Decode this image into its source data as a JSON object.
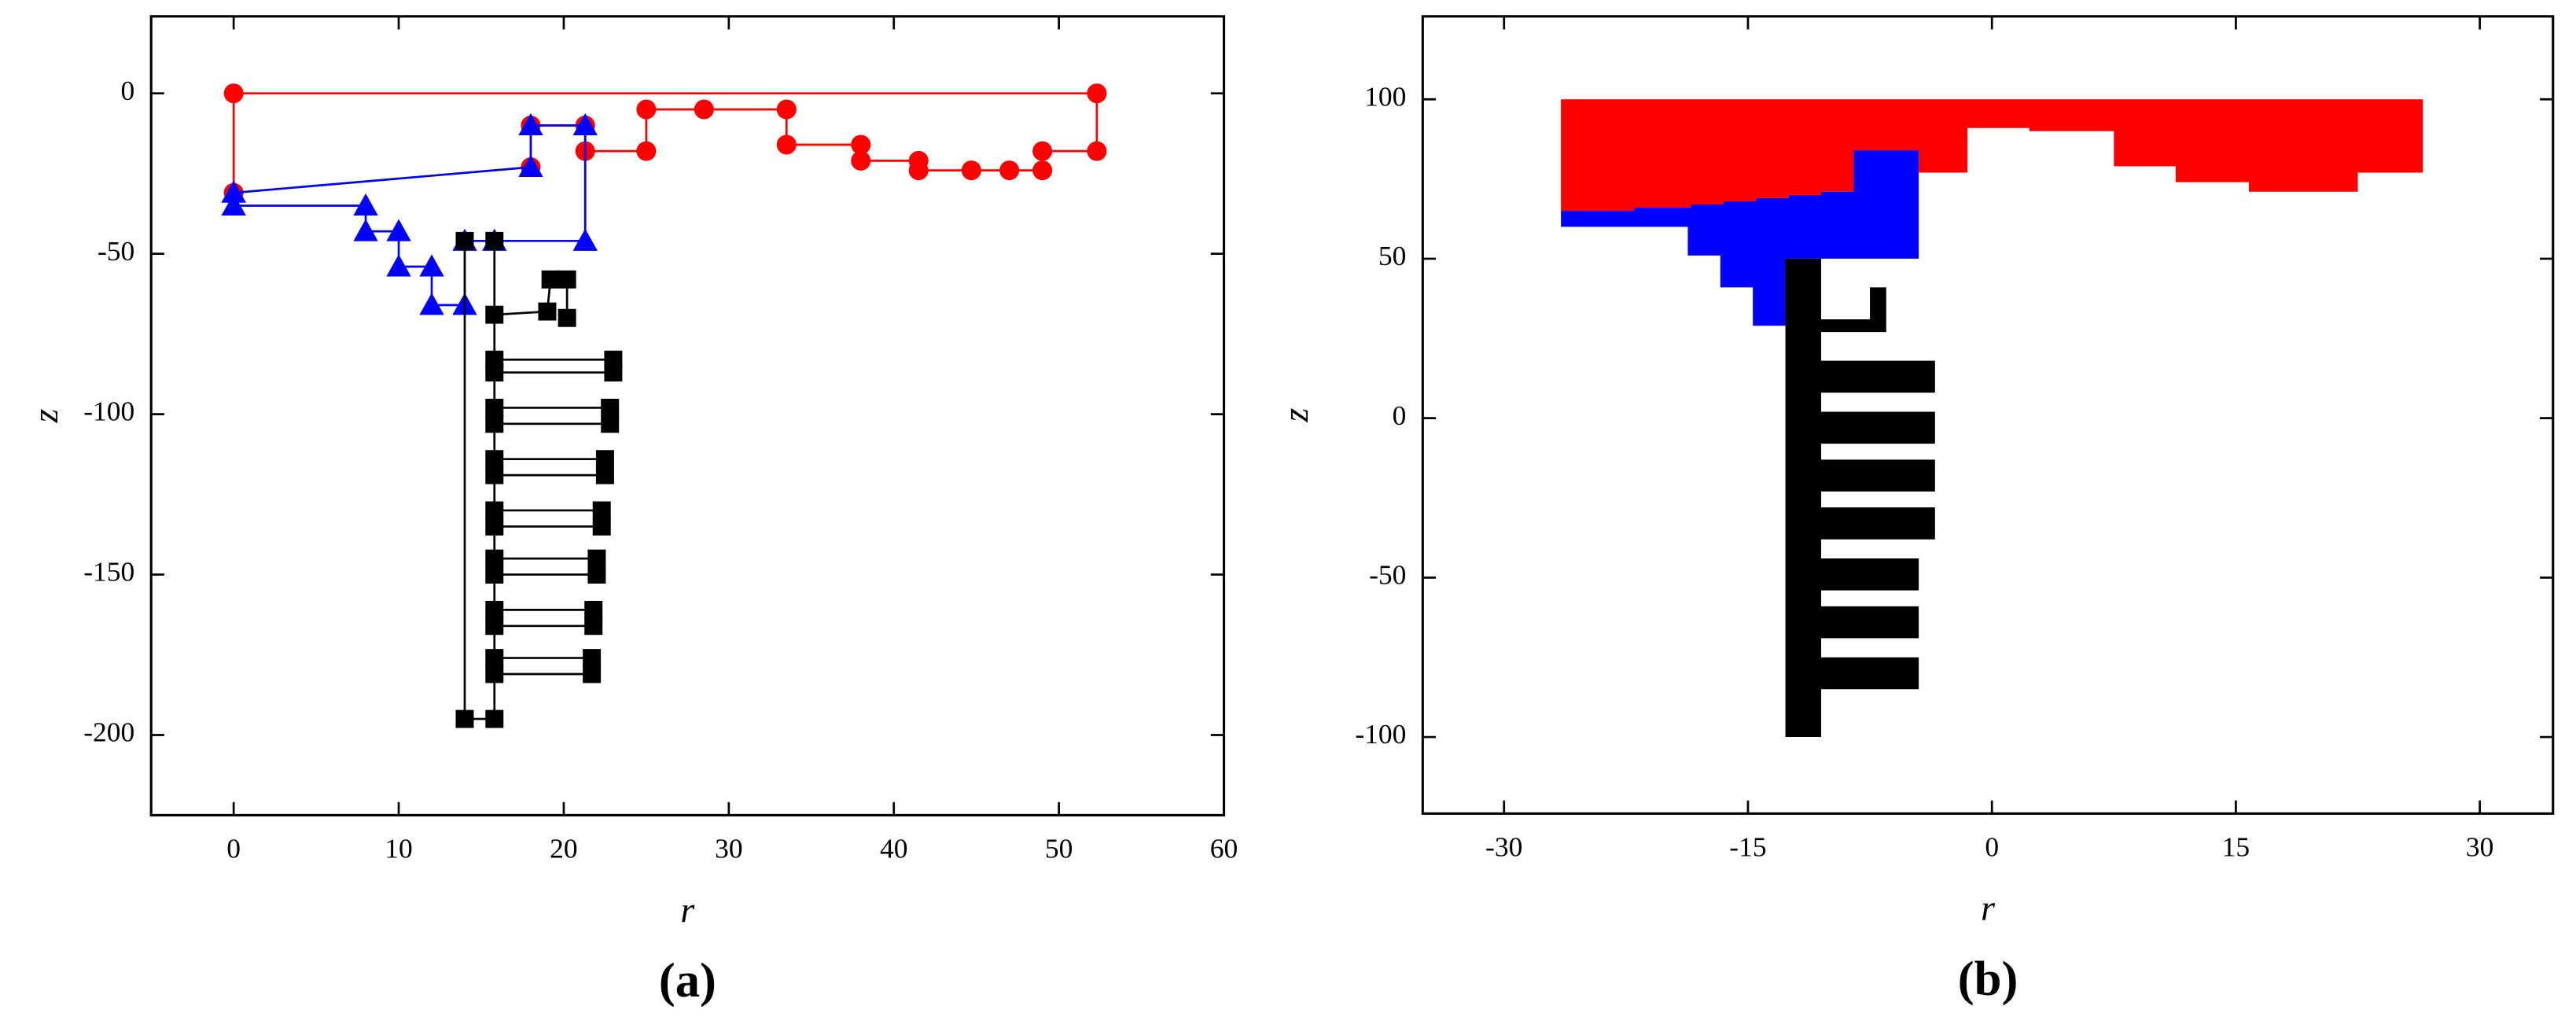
{
  "chart_data": [
    {
      "type": "line",
      "xlabel": "r",
      "ylabel": "z",
      "caption": "(a)",
      "xlim": [
        -5,
        60
      ],
      "ylim": [
        -225,
        24
      ],
      "xticks": [
        0,
        10,
        20,
        30,
        40,
        50,
        60
      ],
      "yticks": [
        0,
        -50,
        -100,
        -150,
        -200
      ],
      "series": [
        {
          "color": "#ff0000",
          "marker": "circle",
          "x": [
            0,
            0,
            52.3,
            52.3,
            49,
            49,
            47,
            44.7,
            41.5,
            41.5,
            38,
            38,
            33.5,
            33.5,
            28.5,
            25,
            25,
            21.3,
            21.3,
            18,
            18
          ],
          "values": [
            -31,
            0,
            0,
            -18,
            -18,
            -24,
            -24,
            -24,
            -24,
            -21,
            -21,
            -16,
            -16,
            -5,
            -5,
            -5,
            -18,
            -18,
            -10,
            -10,
            -23
          ]
        },
        {
          "color": "#0000ff",
          "marker": "triangle",
          "x": [
            0,
            18,
            18,
            21.3,
            21.3,
            15.8,
            14,
            14,
            12,
            12,
            10,
            10,
            8,
            8,
            0,
            0
          ],
          "values": [
            -31,
            -23,
            -10,
            -10,
            -46,
            -46,
            -46,
            -66,
            -66,
            -54,
            -54,
            -43,
            -43,
            -35,
            -35,
            -31
          ]
        },
        {
          "color": "#000000",
          "marker": "square",
          "x": [
            14,
            14,
            15.8,
            15.8,
            null,
            15.8,
            19,
            19.2,
            20.2,
            20.2,
            null,
            15.8,
            23,
            23,
            15.8,
            null,
            15.8,
            22.8,
            22.8,
            15.8,
            null,
            15.8,
            22.5,
            22.5,
            15.8,
            null,
            15.8,
            22.3,
            22.3,
            15.8,
            null,
            15.8,
            22,
            22,
            15.8,
            null,
            15.8,
            21.8,
            21.8,
            15.8,
            null,
            15.8,
            21.7,
            21.7,
            15.8
          ],
          "values": [
            -46,
            -195,
            -195,
            -46,
            null,
            -69,
            -68,
            -58,
            -58,
            -70,
            null,
            -83,
            -83,
            -87,
            -87,
            null,
            -98,
            -98,
            -103,
            -103,
            null,
            -114,
            -114,
            -119,
            -119,
            null,
            -130,
            -130,
            -135,
            -135,
            null,
            -145,
            -145,
            -150,
            -150,
            null,
            -161,
            -161,
            -166,
            -166,
            null,
            -176,
            -176,
            -181,
            -181
          ]
        }
      ]
    },
    {
      "type": "polygon",
      "xlabel": "r",
      "ylabel": "z",
      "caption": "(b)",
      "xlim": [
        -35,
        34.5
      ],
      "ylim": [
        -124,
        126
      ],
      "xticks": [
        -30,
        -15,
        0,
        15,
        30
      ],
      "yticks": [
        100,
        50,
        0,
        -50,
        -100
      ],
      "series": [
        {
          "color": "#ff0000",
          "x": [
            -26.5,
            26.5,
            26.5,
            22.5,
            22.5,
            15.8,
            15.8,
            11.3,
            11.3,
            7.5,
            7.5,
            2.3,
            2.3,
            -1.5,
            -1.5,
            -4.5,
            -4.5,
            -8.5,
            -8.5,
            -10.5,
            -10.5,
            -12.5,
            -12.5,
            -14.5,
            -14.5,
            -16.5,
            -16.5,
            -18.5,
            -18.5,
            -22,
            -22,
            -26.5
          ],
          "values": [
            100,
            100,
            77,
            77,
            71,
            71,
            74,
            74,
            79,
            79,
            90,
            90,
            91,
            91,
            77,
            77,
            84,
            84,
            71,
            71,
            70,
            70,
            69,
            69,
            68,
            68,
            67,
            67,
            66,
            66,
            65,
            65
          ]
        },
        {
          "color": "#0000ff",
          "x": [
            -26.5,
            -22,
            -22,
            -18.5,
            -18.5,
            -16.5,
            -16.5,
            -14.5,
            -14.5,
            -12.5,
            -12.5,
            -10.5,
            -10.5,
            -8.5,
            -8.5,
            -4.5,
            -4.5,
            -12.7,
            -12.7,
            -14.7,
            -14.7,
            -16.7,
            -16.7,
            -18.7,
            -18.7,
            -26.5
          ],
          "values": [
            65,
            65,
            66,
            66,
            67,
            67,
            68,
            68,
            69,
            69,
            70,
            70,
            71,
            71,
            84,
            84,
            50,
            50,
            29,
            29,
            41,
            41,
            51,
            51,
            60,
            60
          ]
        },
        {
          "color": "#000000",
          "x": [
            -12.7,
            -10.5,
            -10.5,
            -7.5,
            -7.5,
            -6.5,
            -6.5,
            -10.5,
            -10.5,
            -3.5,
            -3.5,
            -10.5,
            -10.5,
            -3.5,
            -3.5,
            -10.5,
            -10.5,
            -3.5,
            -3.5,
            -10.5,
            -10.5,
            -3.5,
            -3.5,
            -10.5,
            -10.5,
            -4.5,
            -4.5,
            -10.5,
            -10.5,
            -4.5,
            -4.5,
            -10.5,
            -10.5,
            -4.5,
            -4.5,
            -10.5,
            -10.5,
            -12.7
          ],
          "values": [
            50,
            50,
            31,
            31,
            41,
            41,
            27,
            27,
            18,
            18,
            8,
            8,
            2,
            2,
            -8,
            -8,
            -13,
            -13,
            -23,
            -23,
            -28,
            -28,
            -38,
            -38,
            -44,
            -44,
            -54,
            -54,
            -59,
            -59,
            -69,
            -69,
            -75,
            -75,
            -85,
            -85,
            -100,
            -100
          ]
        }
      ]
    }
  ]
}
